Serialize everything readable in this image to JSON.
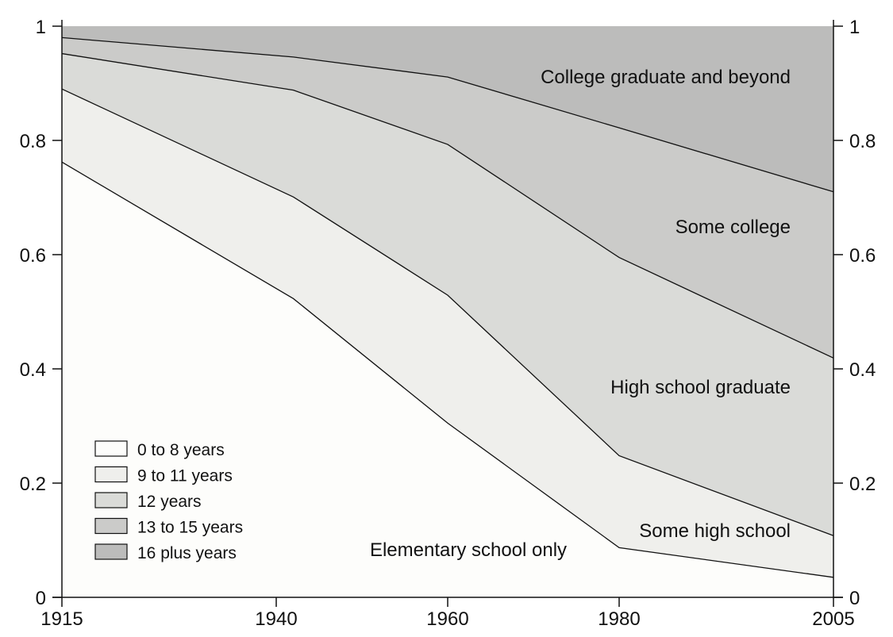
{
  "chart_data": {
    "type": "area",
    "stacked": true,
    "x": [
      1915,
      1942,
      1960,
      1980,
      2005
    ],
    "x_tick_labels": [
      "1915",
      "1940",
      "1960",
      "1980",
      "2005"
    ],
    "x_ticks": [
      1915,
      1940,
      1960,
      1980,
      2005
    ],
    "xlim": [
      1915,
      2005
    ],
    "ylim": [
      0,
      1
    ],
    "y_ticks": [
      0,
      0.2,
      0.4,
      0.6,
      0.8,
      1
    ],
    "y_tick_labels": [
      "0",
      "0.2",
      "0.4",
      "0.6",
      "0.8",
      "1"
    ],
    "right_axis": true,
    "grid": false,
    "legend_position": "bottom-left",
    "series": [
      {
        "name": "0 to 8 years",
        "area_label": "Elementary school only",
        "color": "#fdfdfb",
        "values": [
          0.762,
          0.523,
          0.305,
          0.087,
          0.035
        ]
      },
      {
        "name": "9 to 11 years",
        "area_label": "Some high school",
        "color": "#efefec",
        "values": [
          0.128,
          0.178,
          0.224,
          0.161,
          0.073
        ]
      },
      {
        "name": "12 years",
        "area_label": "High school graduate",
        "color": "#dadbd8",
        "values": [
          0.062,
          0.187,
          0.264,
          0.347,
          0.311
        ]
      },
      {
        "name": "13 to 15 years",
        "area_label": "Some college",
        "color": "#cbcbc9",
        "values": [
          0.028,
          0.058,
          0.118,
          0.227,
          0.291
        ]
      },
      {
        "name": "16 plus years",
        "area_label": "College graduate and beyond",
        "color": "#bcbcbb",
        "values": [
          0.02,
          0.054,
          0.089,
          0.178,
          0.29
        ]
      }
    ],
    "line_color": "#111111"
  }
}
